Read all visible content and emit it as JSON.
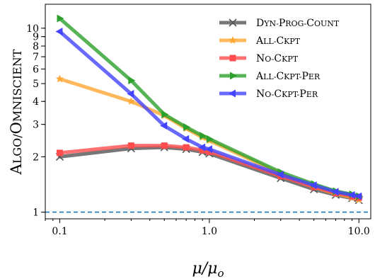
{
  "chart_data": {
    "type": "line",
    "xlabel": "μ/μo",
    "ylabel": "Algo/Omniscient",
    "x_scale": "log",
    "y_scale": "log",
    "xlim": [
      0.08,
      12
    ],
    "ylim": [
      0.92,
      13.5
    ],
    "x_ticks": [
      {
        "value": 0.1,
        "label": "0.1"
      },
      {
        "value": 1.0,
        "label": "1.0"
      },
      {
        "value": 10.0,
        "label": "10.0"
      }
    ],
    "y_ticks": [
      {
        "value": 1,
        "label": "1"
      },
      {
        "value": 2,
        "label": "2"
      },
      {
        "value": 3,
        "label": "3"
      },
      {
        "value": 4,
        "label": "4"
      },
      {
        "value": 5,
        "label": "5"
      },
      {
        "value": 6,
        "label": "6"
      },
      {
        "value": 7,
        "label": "7"
      },
      {
        "value": 8,
        "label": "8"
      },
      {
        "value": 9,
        "label": "9"
      },
      {
        "value": 10,
        "label": "10"
      }
    ],
    "reference_line": {
      "y": 1,
      "style": "dashed",
      "color": "#1f77b4"
    },
    "legend_position": "top-right",
    "series": [
      {
        "name": "Dyn-Prog-Count",
        "color": "#555555",
        "marker": "x",
        "x": [
          0.1,
          0.3,
          0.5,
          0.7,
          0.9,
          1.0,
          3.0,
          5.0,
          7.0,
          9.0,
          10.0
        ],
        "y": [
          2.0,
          2.22,
          2.25,
          2.2,
          2.12,
          2.08,
          1.53,
          1.33,
          1.24,
          1.19,
          1.16
        ]
      },
      {
        "name": "All-Ckpt",
        "color": "#ffa833",
        "marker": "star",
        "x": [
          0.1,
          0.3,
          0.5,
          0.7,
          0.9,
          1.0,
          3.0,
          5.0,
          7.0,
          9.0,
          10.0
        ],
        "y": [
          5.3,
          4.0,
          3.35,
          2.85,
          2.55,
          2.45,
          1.62,
          1.37,
          1.26,
          1.2,
          1.17
        ]
      },
      {
        "name": "No-Ckpt",
        "color": "#ff4d4d",
        "marker": "square",
        "x": [
          0.1,
          0.3,
          0.5,
          0.7,
          0.9,
          1.0,
          3.0,
          5.0,
          7.0,
          9.0,
          10.0
        ],
        "y": [
          2.1,
          2.3,
          2.3,
          2.25,
          2.17,
          2.13,
          1.57,
          1.37,
          1.27,
          1.22,
          1.2
        ]
      },
      {
        "name": "All-Ckpt-Per",
        "color": "#2ca02c",
        "marker": "triangle-right",
        "x": [
          0.1,
          0.3,
          0.5,
          0.7,
          0.9,
          1.0,
          3.0,
          5.0,
          7.0,
          9.0,
          10.0
        ],
        "y": [
          11.3,
          5.2,
          3.4,
          2.9,
          2.6,
          2.5,
          1.65,
          1.42,
          1.3,
          1.25,
          1.22
        ]
      },
      {
        "name": "No-Ckpt-Per",
        "color": "#4444ff",
        "marker": "triangle-left",
        "x": [
          0.1,
          0.3,
          0.5,
          0.7,
          0.9,
          1.0,
          3.0,
          5.0,
          7.0,
          9.0,
          10.0
        ],
        "y": [
          9.6,
          4.4,
          2.95,
          2.5,
          2.25,
          2.2,
          1.6,
          1.4,
          1.29,
          1.24,
          1.22
        ]
      }
    ]
  }
}
